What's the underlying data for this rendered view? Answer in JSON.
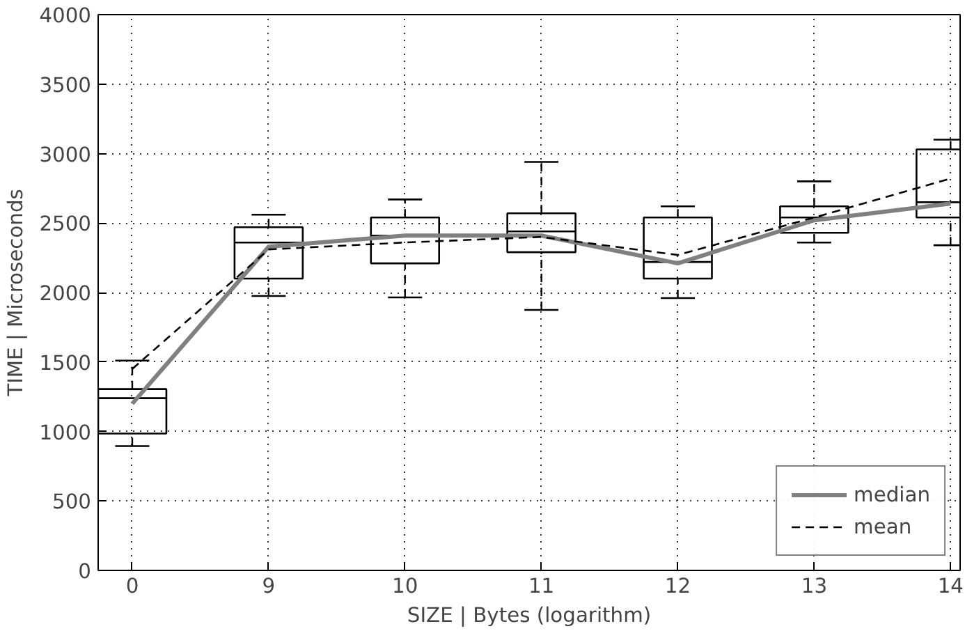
{
  "chart_data": {
    "type": "box",
    "xlabel": "SIZE | Bytes (logarithm)",
    "ylabel": "TIME | Microseconds",
    "categories": [
      "0",
      "9",
      "10",
      "11",
      "12",
      "13",
      "14"
    ],
    "boxes": [
      {
        "low": 895,
        "q1": 985,
        "median": 1240,
        "q3": 1305,
        "high": 1510
      },
      {
        "low": 1975,
        "q1": 2100,
        "median": 2360,
        "q3": 2470,
        "high": 2560
      },
      {
        "low": 1965,
        "q1": 2210,
        "median": 2410,
        "q3": 2540,
        "high": 2670
      },
      {
        "low": 1875,
        "q1": 2290,
        "median": 2440,
        "q3": 2570,
        "high": 2940
      },
      {
        "low": 1960,
        "q1": 2100,
        "median": 2220,
        "q3": 2540,
        "high": 2620
      },
      {
        "low": 2360,
        "q1": 2430,
        "median": 2540,
        "q3": 2620,
        "high": 2800
      },
      {
        "low": 2340,
        "q1": 2540,
        "median": 2650,
        "q3": 3030,
        "high": 3100
      }
    ],
    "series": [
      {
        "name": "median",
        "type": "line",
        "color": "#808080",
        "line_style": "solid",
        "values": [
          1200,
          2330,
          2410,
          2410,
          2210,
          2520,
          2640
        ]
      },
      {
        "name": "mean",
        "type": "line",
        "color": "#000000",
        "line_style": "dashed",
        "values": [
          1450,
          2310,
          2360,
          2400,
          2270,
          2540,
          2820
        ]
      }
    ],
    "ylim": [
      0,
      4000
    ],
    "yticks": [
      0,
      500,
      1000,
      1500,
      2000,
      2500,
      3000,
      3500,
      4000
    ],
    "grid": true,
    "legend": "bottom right"
  }
}
